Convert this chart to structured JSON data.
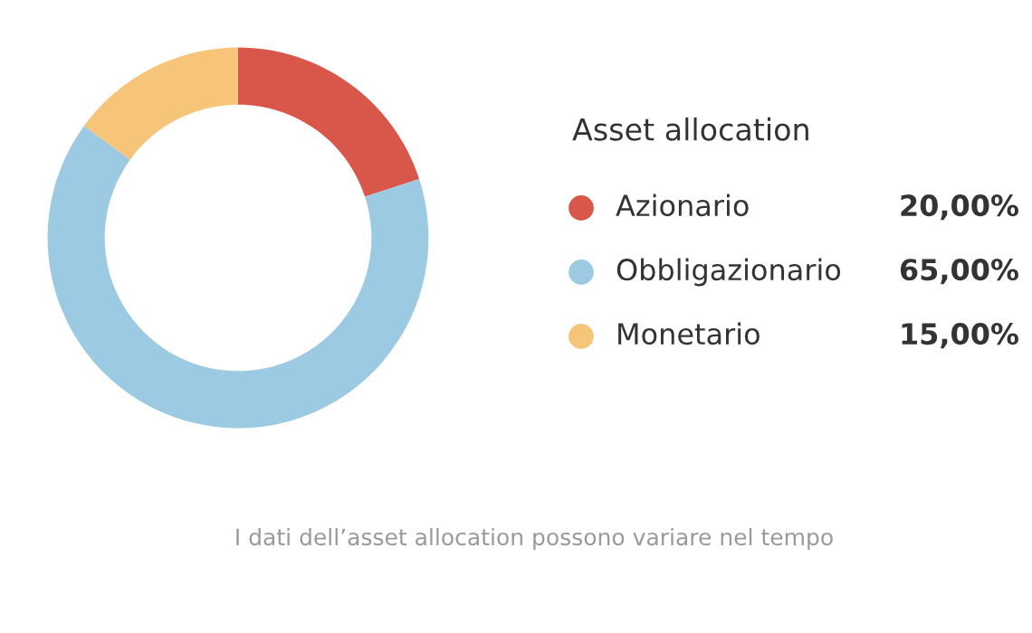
{
  "chart_data": {
    "type": "donut",
    "legend_title": "Asset allocation",
    "categories": [
      "Azionario",
      "Obbligazionario",
      "Monetario"
    ],
    "values": [
      20,
      65,
      15
    ],
    "value_labels": [
      "20,00%",
      "65,00%",
      "15,00%"
    ],
    "colors": [
      "#d9574a",
      "#9ccae3",
      "#f6c57a"
    ],
    "legend": "right",
    "annotations": [
      "I dati dell’asset allocation possono variare nel tempo"
    ]
  }
}
